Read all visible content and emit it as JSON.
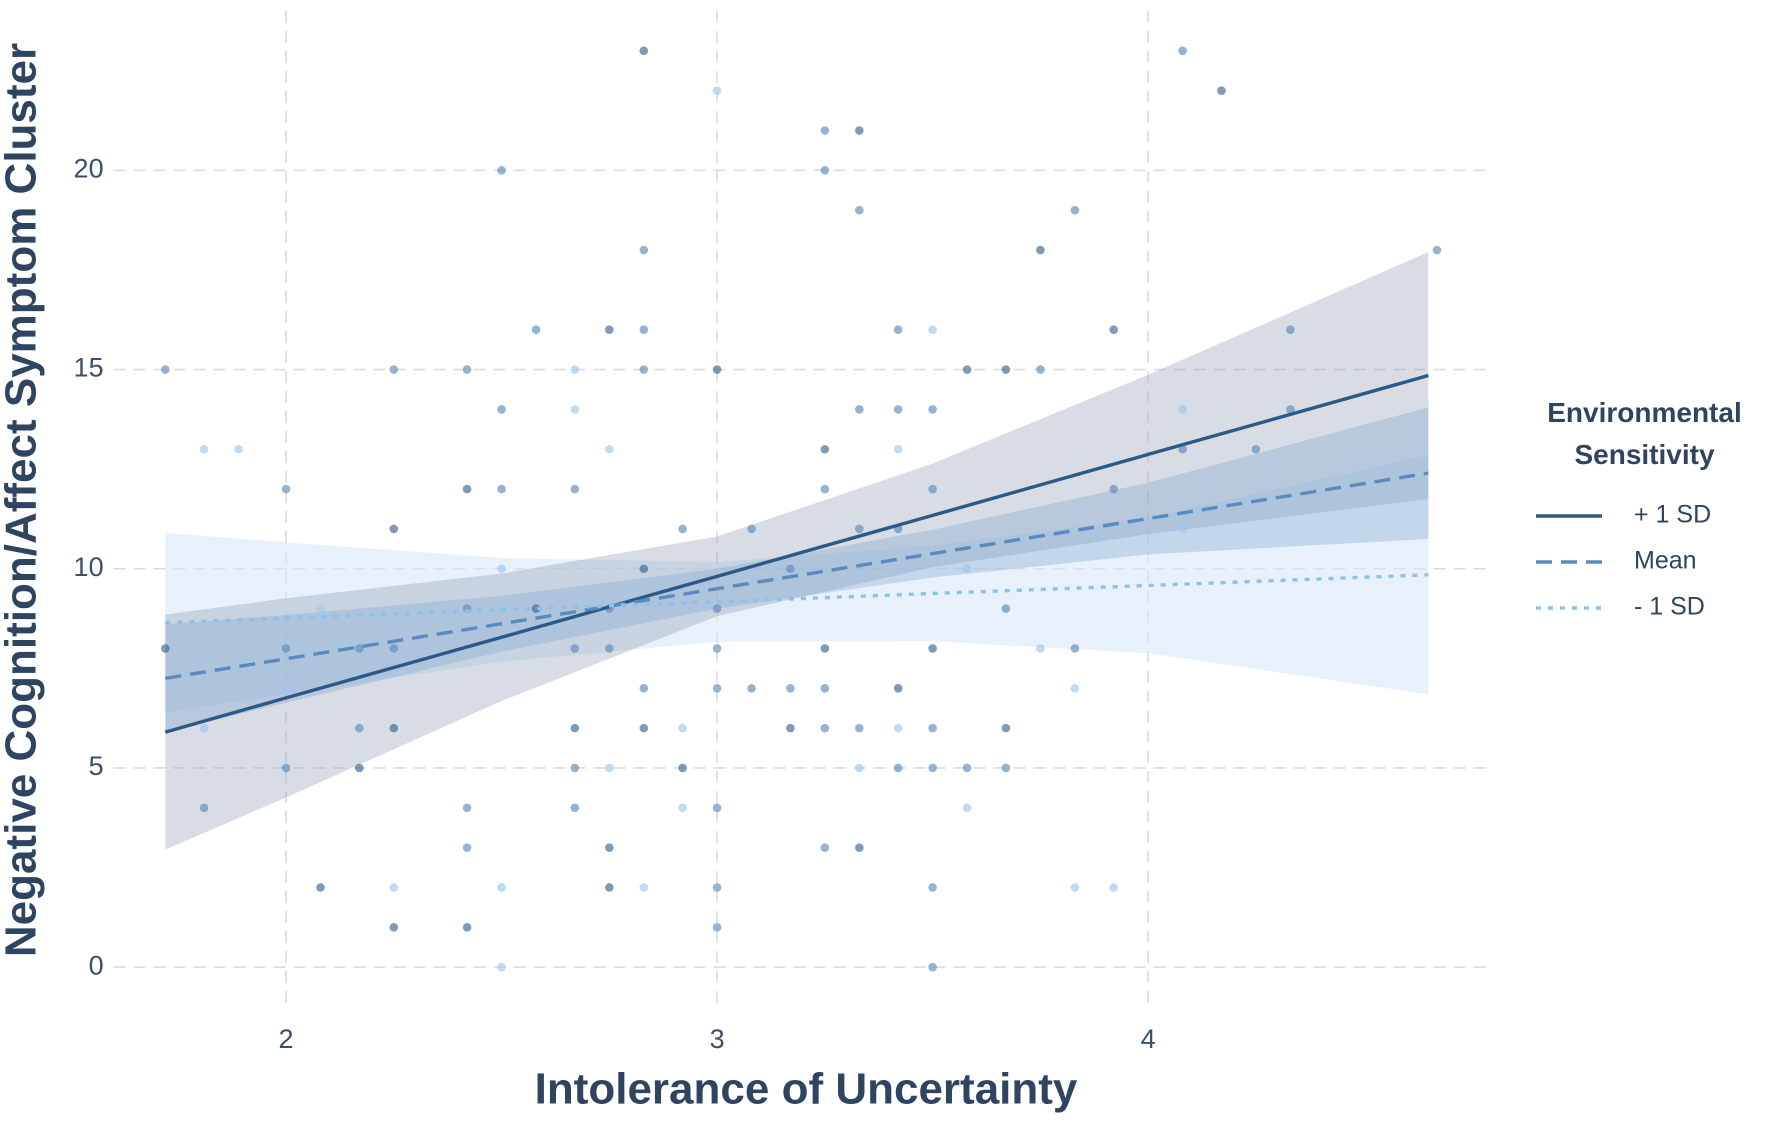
{
  "chart_data": {
    "type": "scatter",
    "x_label": "Intolerance of Uncertainty",
    "y_label": "Negative Cognition/Affect Symptom Cluster",
    "legend_title": "Environmental Sensitivity",
    "legend_position": "right",
    "grid": true,
    "xlim": [
      1.6,
      4.8
    ],
    "ylim": [
      -1,
      24
    ],
    "xticks": [
      2,
      3,
      4
    ],
    "yticks": [
      0,
      5,
      10,
      15,
      20
    ],
    "series": [
      {
        "name": "+ 1 SD",
        "color": "#2c5985",
        "line_style": "solid",
        "band_color": "#9aa8bd",
        "point_color": "#3a6690",
        "x": [
          1.72,
          2,
          2.5,
          3,
          3.5,
          4,
          4.65
        ],
        "values": [
          5.9,
          6.76,
          8.28,
          9.81,
          11.34,
          12.87,
          14.85
        ],
        "lower": [
          2.95,
          4.26,
          6.68,
          8.81,
          10.04,
          10.87,
          11.75
        ],
        "upper": [
          8.85,
          9.26,
          9.88,
          10.81,
          12.64,
          14.87,
          17.95
        ],
        "points": {
          "x": [
            1.72,
            2.08,
            2.17,
            2.25,
            2.25,
            2.25,
            2.42,
            2.42,
            2.58,
            2.67,
            2.75,
            2.75,
            2.75,
            2.83,
            2.83,
            2.83,
            2.92,
            3,
            3.17,
            3.25,
            3.25,
            3.33,
            3.33,
            3.42,
            3.5,
            3.58,
            3.67,
            3.67,
            3.75,
            3.92,
            4.17
          ],
          "y": [
            8,
            2,
            5,
            11,
            6,
            1,
            12,
            1,
            9,
            6,
            16,
            3,
            2,
            23,
            10,
            6,
            5,
            15,
            6,
            13,
            8,
            21,
            3,
            7,
            8,
            15,
            15,
            6,
            18,
            16,
            22
          ]
        }
      },
      {
        "name": "Mean",
        "color": "#5b8bbd",
        "line_style": "dashed",
        "band_color": "#7fa6d1",
        "point_color": "#5d8ab8",
        "x": [
          1.72,
          2,
          2.5,
          3,
          3.5,
          4,
          4.65
        ],
        "values": [
          7.25,
          7.74,
          8.62,
          9.5,
          10.38,
          11.26,
          12.4
        ],
        "lower": [
          5.9,
          6.64,
          7.92,
          9.0,
          9.78,
          10.36,
          10.75
        ],
        "upper": [
          8.6,
          8.84,
          9.32,
          10.0,
          10.98,
          12.16,
          14.05
        ],
        "points": {
          "x": [
            1.72,
            1.81,
            2,
            2,
            2,
            2.17,
            2.17,
            2.25,
            2.25,
            2.42,
            2.42,
            2.42,
            2.42,
            2.5,
            2.5,
            2.5,
            2.58,
            2.67,
            2.67,
            2.67,
            2.67,
            2.75,
            2.75,
            2.83,
            2.83,
            2.83,
            2.83,
            2.92,
            3,
            3,
            3,
            3,
            3,
            3,
            3.08,
            3.08,
            3.17,
            3.17,
            3.25,
            3.25,
            3.25,
            3.25,
            3.25,
            3.25,
            3.33,
            3.33,
            3.33,
            3.33,
            3.42,
            3.42,
            3.42,
            3.42,
            3.5,
            3.5,
            3.5,
            3.5,
            3.5,
            3.5,
            3.58,
            3.67,
            3.67,
            3.75,
            3.83,
            3.83,
            3.92,
            4.08,
            4.08,
            4.25,
            4.33,
            4.33,
            4.67
          ],
          "y": [
            15,
            4,
            12,
            8,
            5,
            8,
            6,
            15,
            8,
            15,
            9,
            4,
            3,
            20,
            14,
            12,
            16,
            12,
            8,
            5,
            4,
            9,
            8,
            18,
            16,
            15,
            7,
            11,
            9,
            8,
            7,
            4,
            2,
            1,
            11,
            7,
            10,
            7,
            21,
            20,
            12,
            7,
            6,
            3,
            19,
            14,
            11,
            6,
            16,
            14,
            11,
            5,
            14,
            12,
            6,
            5,
            2,
            0,
            5,
            9,
            5,
            15,
            19,
            8,
            12,
            23,
            13,
            13,
            16,
            14,
            18
          ]
        }
      },
      {
        "name": "- 1 SD",
        "color": "#8fc1e8",
        "line_style": "dotted",
        "band_color": "#d3e4f8",
        "point_color": "#9cc8ee",
        "x": [
          1.72,
          2,
          2.5,
          3,
          3.5,
          4,
          4.65
        ],
        "values": [
          8.65,
          8.76,
          8.97,
          9.17,
          9.38,
          9.58,
          9.85
        ],
        "lower": [
          6.4,
          6.86,
          7.67,
          8.17,
          8.18,
          7.88,
          6.85
        ],
        "upper": [
          10.9,
          10.66,
          10.27,
          10.17,
          10.58,
          11.28,
          12.85
        ],
        "points": {
          "x": [
            1.81,
            1.81,
            1.89,
            2,
            2.08,
            2.25,
            2.5,
            2.5,
            2.5,
            2.5,
            2.67,
            2.67,
            2.75,
            2.75,
            2.83,
            2.92,
            2.92,
            3,
            3.33,
            3.42,
            3.42,
            3.5,
            3.58,
            3.58,
            3.75,
            3.83,
            3.83,
            3.92,
            4.08,
            4.08
          ],
          "y": [
            13,
            6,
            13,
            7,
            9,
            2,
            10,
            9,
            2,
            0,
            15,
            14,
            13,
            5,
            2,
            6,
            4,
            22,
            5,
            13,
            6,
            16,
            10,
            4,
            8,
            7,
            2,
            2,
            14,
            11
          ]
        }
      }
    ]
  }
}
